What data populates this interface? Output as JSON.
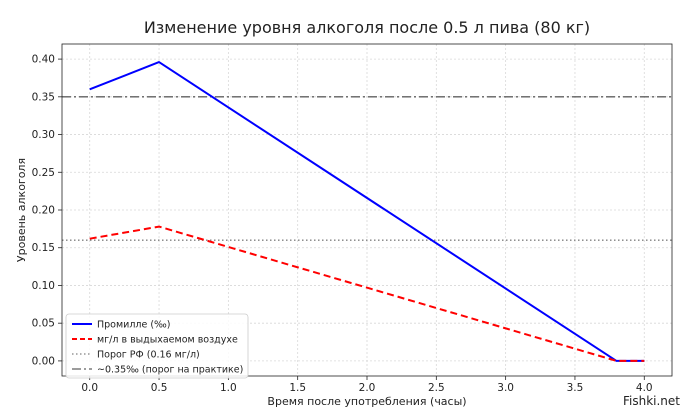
{
  "watermark": "Fishki.net",
  "chart_data": {
    "type": "line",
    "title": "Изменение уровня алкоголя после 0.5 л пива (80 кг)",
    "xlabel": "Время после употребления (часы)",
    "ylabel": "Уровень алкоголя",
    "xlim": [
      -0.2,
      4.2
    ],
    "ylim": [
      -0.02,
      0.42
    ],
    "xticks": [
      "0.0",
      "0.5",
      "1.0",
      "1.5",
      "2.0",
      "2.5",
      "3.0",
      "3.5",
      "4.0"
    ],
    "yticks": [
      "0.00",
      "0.05",
      "0.10",
      "0.15",
      "0.20",
      "0.25",
      "0.30",
      "0.35",
      "0.40"
    ],
    "grid": true,
    "legend_position": "lower-left",
    "series": [
      {
        "name": "Промилле (‰)",
        "style": "solid",
        "color": "#0000ff",
        "x": [
          0.0,
          0.5,
          3.8,
          4.0
        ],
        "y": [
          0.36,
          0.396,
          0.0,
          0.0
        ]
      },
      {
        "name": "мг/л в выдыхаемом воздухе",
        "style": "dashed",
        "color": "#ff0000",
        "x": [
          0.0,
          0.5,
          3.8,
          4.0
        ],
        "y": [
          0.162,
          0.178,
          0.0,
          0.0
        ]
      }
    ],
    "reference_lines": [
      {
        "name": "Порог РФ (0.16 мг/л)",
        "style": "dotted",
        "color": "#808080",
        "y": 0.16
      },
      {
        "name": "~0.35‰ (порог на практике)",
        "style": "dashdot",
        "color": "#606060",
        "y": 0.35
      }
    ]
  }
}
